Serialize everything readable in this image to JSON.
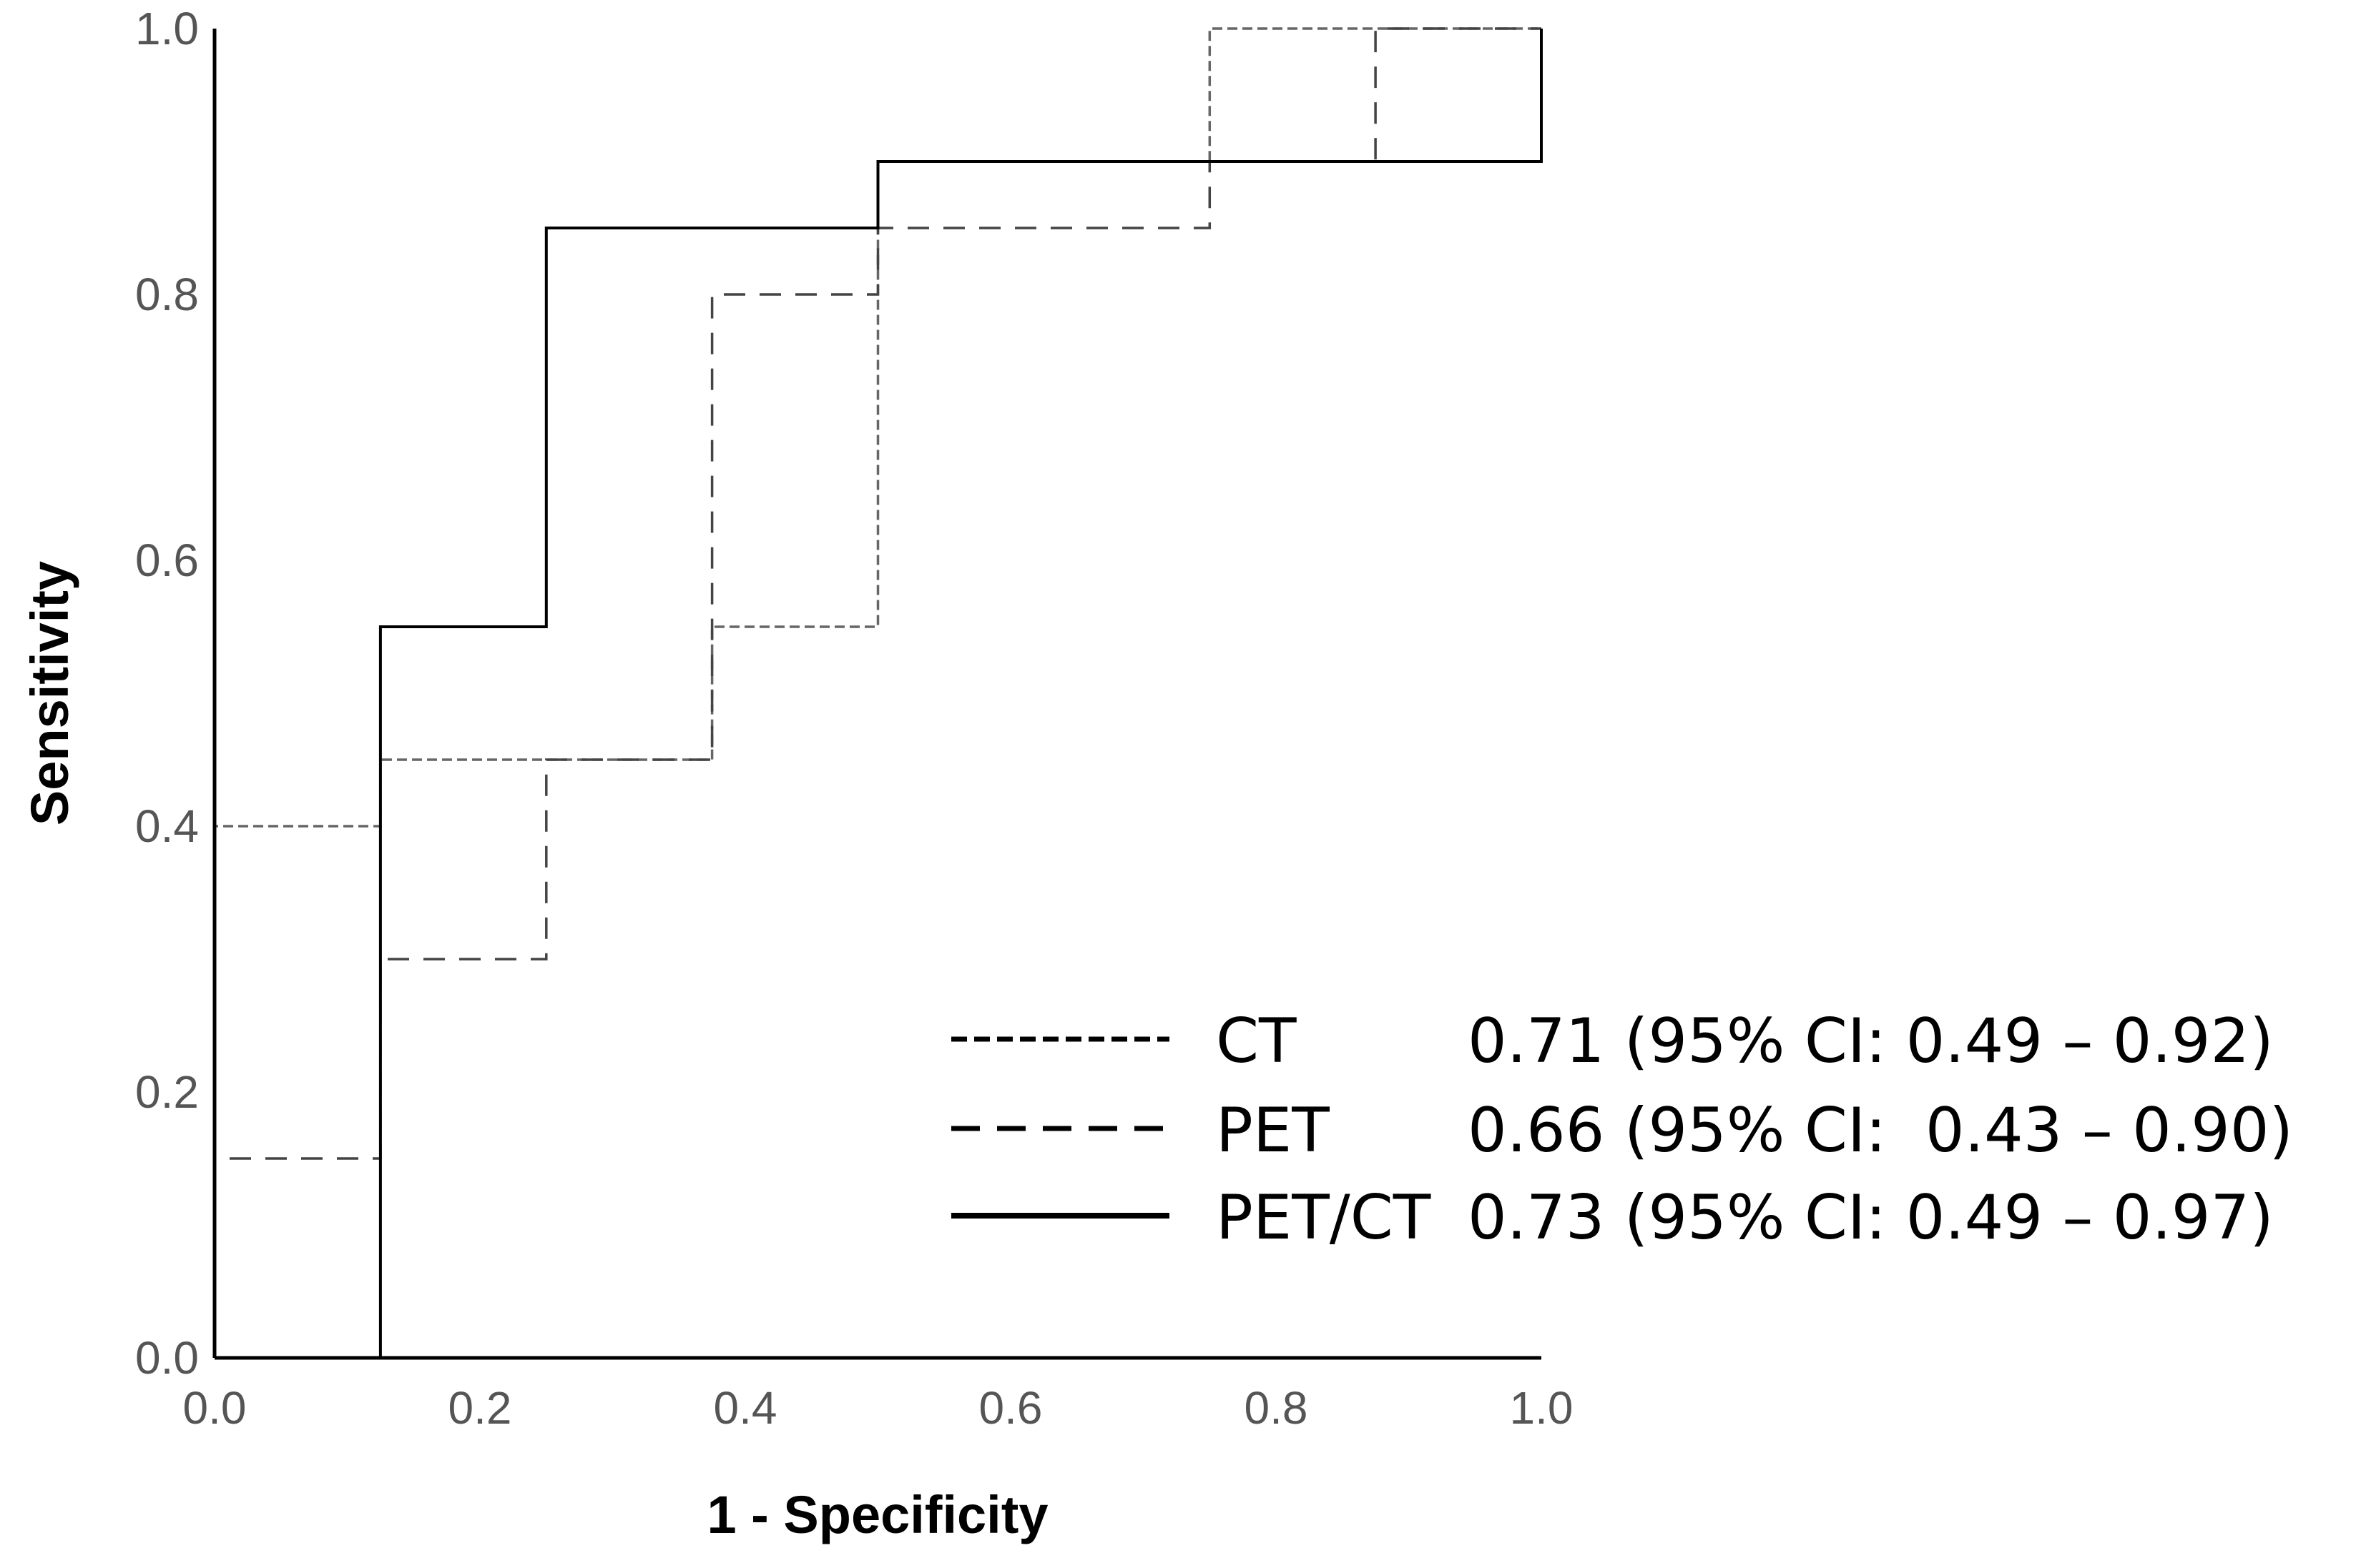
{
  "chart_data": {
    "type": "line",
    "subtype": "roc-step",
    "xlabel": "1 - Specificity",
    "ylabel": "Sensitivity",
    "xlim": [
      0,
      1
    ],
    "ylim": [
      0,
      1
    ],
    "xticks": [
      "0.0",
      "0.2",
      "0.4",
      "0.6",
      "0.8",
      "1.0"
    ],
    "yticks": [
      "0.0",
      "0.2",
      "0.4",
      "0.6",
      "0.8",
      "1.0"
    ],
    "grid": false,
    "legend_position": "bottom-right",
    "series": [
      {
        "name": "CT",
        "style": "dotted",
        "color": "#666666",
        "auc_label": "0.71 (95% CI: 0.49 – 0.92)",
        "points": [
          [
            0,
            0
          ],
          [
            0,
            0.4
          ],
          [
            0.125,
            0.4
          ],
          [
            0.125,
            0.45
          ],
          [
            0.375,
            0.45
          ],
          [
            0.375,
            0.55
          ],
          [
            0.5,
            0.55
          ],
          [
            0.5,
            0.9
          ],
          [
            0.75,
            0.9
          ],
          [
            0.75,
            1.0
          ],
          [
            1.0,
            1.0
          ]
        ]
      },
      {
        "name": "PET",
        "style": "dashed",
        "color": "#444444",
        "auc_label": "0.66 (95% CI:  0.43 – 0.90)",
        "points": [
          [
            0,
            0
          ],
          [
            0,
            0.15
          ],
          [
            0.125,
            0.15
          ],
          [
            0.125,
            0.3
          ],
          [
            0.25,
            0.3
          ],
          [
            0.25,
            0.45
          ],
          [
            0.375,
            0.45
          ],
          [
            0.375,
            0.8
          ],
          [
            0.5,
            0.8
          ],
          [
            0.5,
            0.85
          ],
          [
            0.75,
            0.85
          ],
          [
            0.75,
            0.9
          ],
          [
            0.875,
            0.9
          ],
          [
            0.875,
            1.0
          ],
          [
            1.0,
            1.0
          ]
        ]
      },
      {
        "name": "PET/CT",
        "style": "solid",
        "color": "#000000",
        "auc_label": "0.73 (95% CI: 0.49 – 0.97)",
        "points": [
          [
            0,
            0
          ],
          [
            0.125,
            0
          ],
          [
            0.125,
            0.55
          ],
          [
            0.25,
            0.55
          ],
          [
            0.25,
            0.85
          ],
          [
            0.5,
            0.85
          ],
          [
            0.5,
            0.9
          ],
          [
            1.0,
            0.9
          ],
          [
            1.0,
            1.0
          ]
        ]
      }
    ]
  }
}
